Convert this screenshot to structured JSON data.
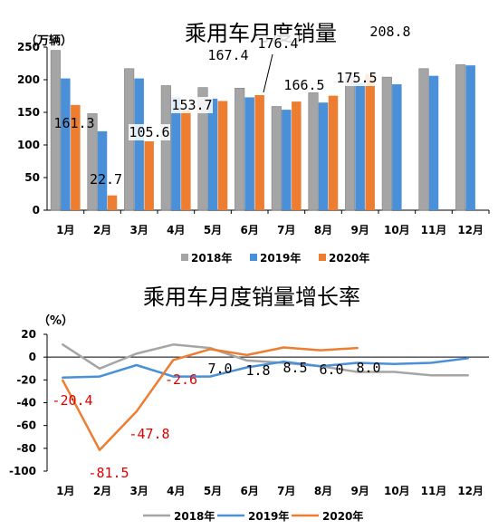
{
  "colors": {
    "s2018": "#a5a5a5",
    "s2019": "#4a90d9",
    "s2020": "#ed7d31",
    "red": "#e00000"
  },
  "chart_data": [
    {
      "type": "bar",
      "title": "乘用车月度销量",
      "unit": "（万辆）",
      "categories": [
        "1月",
        "2月",
        "3月",
        "4月",
        "5月",
        "6月",
        "7月",
        "8月",
        "9月",
        "10月",
        "11月",
        "12月"
      ],
      "ylim": [
        0,
        250
      ],
      "yticks": [
        0,
        50,
        100,
        150,
        200,
        250
      ],
      "legend_position": "bottom",
      "series": [
        {
          "name": "2018年",
          "values": [
            245,
            148,
            217,
            191,
            188,
            187,
            159,
            180,
            205,
            204,
            217,
            223
          ]
        },
        {
          "name": "2019年",
          "values": [
            202,
            121,
            202,
            173,
            171,
            173,
            154,
            165,
            195,
            193,
            206,
            222
          ]
        },
        {
          "name": "2020年",
          "values": [
            161.3,
            22.7,
            105.6,
            153.7,
            167.4,
            176.4,
            166.5,
            175.5,
            208.8,
            null,
            null,
            null
          ]
        }
      ],
      "data_labels": [
        "161.3",
        "22.7",
        "105.6",
        "153.7",
        "167.4",
        "176.4",
        "166.5",
        "175.5",
        "208.8"
      ]
    },
    {
      "type": "line",
      "title": "乘用车月度销量增长率",
      "unit": "（%）",
      "categories": [
        "1月",
        "2月",
        "3月",
        "4月",
        "5月",
        "6月",
        "7月",
        "8月",
        "9月",
        "10月",
        "11月",
        "12月"
      ],
      "ylim": [
        -100,
        20
      ],
      "yticks": [
        20,
        0,
        -20,
        -40,
        -60,
        -80,
        -100
      ],
      "legend_position": "bottom",
      "series": [
        {
          "name": "2018年",
          "values": [
            11,
            -10,
            3,
            11,
            8,
            -3,
            -5,
            -8,
            -13,
            -13,
            -16,
            -16
          ]
        },
        {
          "name": "2019年",
          "values": [
            -18,
            -17,
            -7,
            -17,
            -17,
            -9,
            -4,
            -8,
            -5,
            -6,
            -5,
            -1
          ]
        },
        {
          "name": "2020年",
          "values": [
            -20.4,
            -81.5,
            -47.8,
            -2.6,
            7.0,
            1.8,
            8.5,
            6.0,
            8.0,
            null,
            null,
            null
          ]
        }
      ],
      "data_labels": [
        "-20.4",
        "-81.5",
        "-47.8",
        "-2.6",
        "7.0",
        "1.8",
        "8.5",
        "6.0",
        "8.0"
      ]
    }
  ]
}
